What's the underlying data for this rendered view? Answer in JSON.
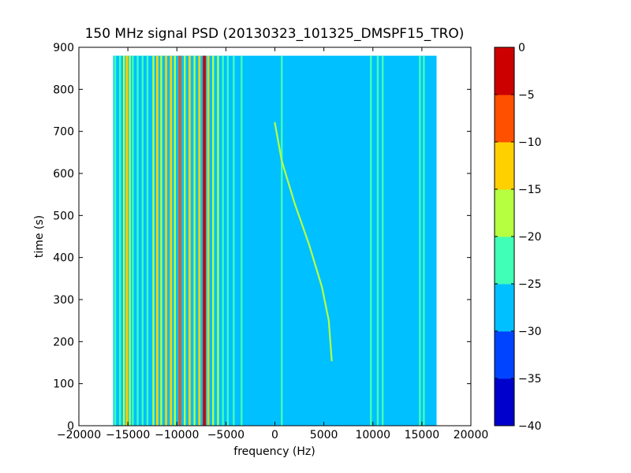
{
  "chart_data": {
    "type": "heatmap",
    "title": "150 MHz signal PSD (20130323_101325_DMSPF15_TRO)",
    "xlabel": "frequency (Hz)",
    "ylabel": "time (s)",
    "xlim": [
      -20000,
      20000
    ],
    "ylim": [
      0,
      900
    ],
    "xticks": [
      -20000,
      -15000,
      -10000,
      -5000,
      0,
      5000,
      10000,
      15000,
      20000
    ],
    "xtick_labels": [
      "−20000",
      "−15000",
      "−10000",
      "−5000",
      "0",
      "5000",
      "10000",
      "15000",
      "20000"
    ],
    "yticks": [
      0,
      100,
      200,
      300,
      400,
      500,
      600,
      700,
      800,
      900
    ],
    "ytick_labels": [
      "0",
      "100",
      "200",
      "300",
      "400",
      "500",
      "600",
      "700",
      "800",
      "900"
    ],
    "data_extent": {
      "x": [
        -16500,
        16500
      ],
      "y": [
        0,
        880
      ]
    },
    "background_level": -27.5,
    "colorbar": {
      "levels": [
        -40,
        -35,
        -30,
        -25,
        -20,
        -15,
        -10,
        -5,
        0
      ],
      "tick_labels": [
        "−40",
        "−35",
        "−30",
        "−25",
        "−20",
        "−15",
        "−10",
        "−5",
        "0"
      ],
      "colors": [
        "#0000cd",
        "#0044ff",
        "#00c0ff",
        "#40ffb6",
        "#b6ff40",
        "#ffd000",
        "#ff5000",
        "#cd0000"
      ]
    },
    "vertical_lines": [
      {
        "x": -16300,
        "level": -22.5
      },
      {
        "x": -15800,
        "level": -22.5
      },
      {
        "x": -15400,
        "level": -17.5
      },
      {
        "x": -15100,
        "level": -12.5
      },
      {
        "x": -14800,
        "level": -17.5
      },
      {
        "x": -14500,
        "level": -22.5
      },
      {
        "x": -14000,
        "level": -22.5
      },
      {
        "x": -13500,
        "level": -22.5
      },
      {
        "x": -13000,
        "level": -22.5
      },
      {
        "x": -12400,
        "level": -17.5
      },
      {
        "x": -12000,
        "level": -12.5
      },
      {
        "x": -11600,
        "level": -17.5
      },
      {
        "x": -11100,
        "level": -12.5
      },
      {
        "x": -10600,
        "level": -12.5
      },
      {
        "x": -10200,
        "level": -17.5
      },
      {
        "x": -9700,
        "level": -7.5
      },
      {
        "x": -9200,
        "level": -17.5
      },
      {
        "x": -8700,
        "level": -12.5
      },
      {
        "x": -8200,
        "level": -17.5
      },
      {
        "x": -7700,
        "level": -12.5
      },
      {
        "x": -7200,
        "level": -2.5
      },
      {
        "x": -6800,
        "level": -12.5
      },
      {
        "x": -6300,
        "level": -17.5
      },
      {
        "x": -5800,
        "level": -17.5
      },
      {
        "x": -5300,
        "level": -22.5
      },
      {
        "x": -4800,
        "level": -22.5
      },
      {
        "x": -4200,
        "level": -22.5
      },
      {
        "x": -3400,
        "level": -22.5
      },
      {
        "x": 700,
        "level": -22.5
      },
      {
        "x": 9800,
        "level": -22.5
      },
      {
        "x": 10500,
        "level": -22.5
      },
      {
        "x": 11000,
        "level": -22.5
      },
      {
        "x": 14800,
        "level": -22.5
      },
      {
        "x": 15200,
        "level": -22.5
      }
    ],
    "doppler_trace": {
      "level": -17.5,
      "points": [
        [
          5800,
          155
        ],
        [
          5500,
          250
        ],
        [
          4800,
          330
        ],
        [
          3500,
          430
        ],
        [
          2000,
          530
        ],
        [
          700,
          630
        ],
        [
          0,
          720
        ]
      ]
    }
  }
}
